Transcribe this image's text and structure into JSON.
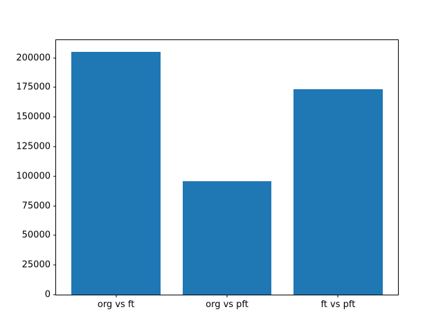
{
  "chart_data": {
    "type": "bar",
    "title": "",
    "xlabel": "",
    "ylabel": "",
    "categories": [
      "org vs ft",
      "org vs pft",
      "ft vs pft"
    ],
    "values": [
      204900,
      95600,
      173500
    ],
    "yticks": [
      0,
      25000,
      50000,
      75000,
      100000,
      125000,
      150000,
      175000,
      200000
    ],
    "ylim": [
      0,
      215000
    ],
    "xlim": [
      -0.54,
      2.54
    ],
    "bar_width": 0.8,
    "bar_color": "#1f77b4",
    "axes_background": "#ffffff",
    "figure_background": "#ffffff",
    "spine_color": "#000000",
    "grid": false,
    "legend_position": "none"
  }
}
